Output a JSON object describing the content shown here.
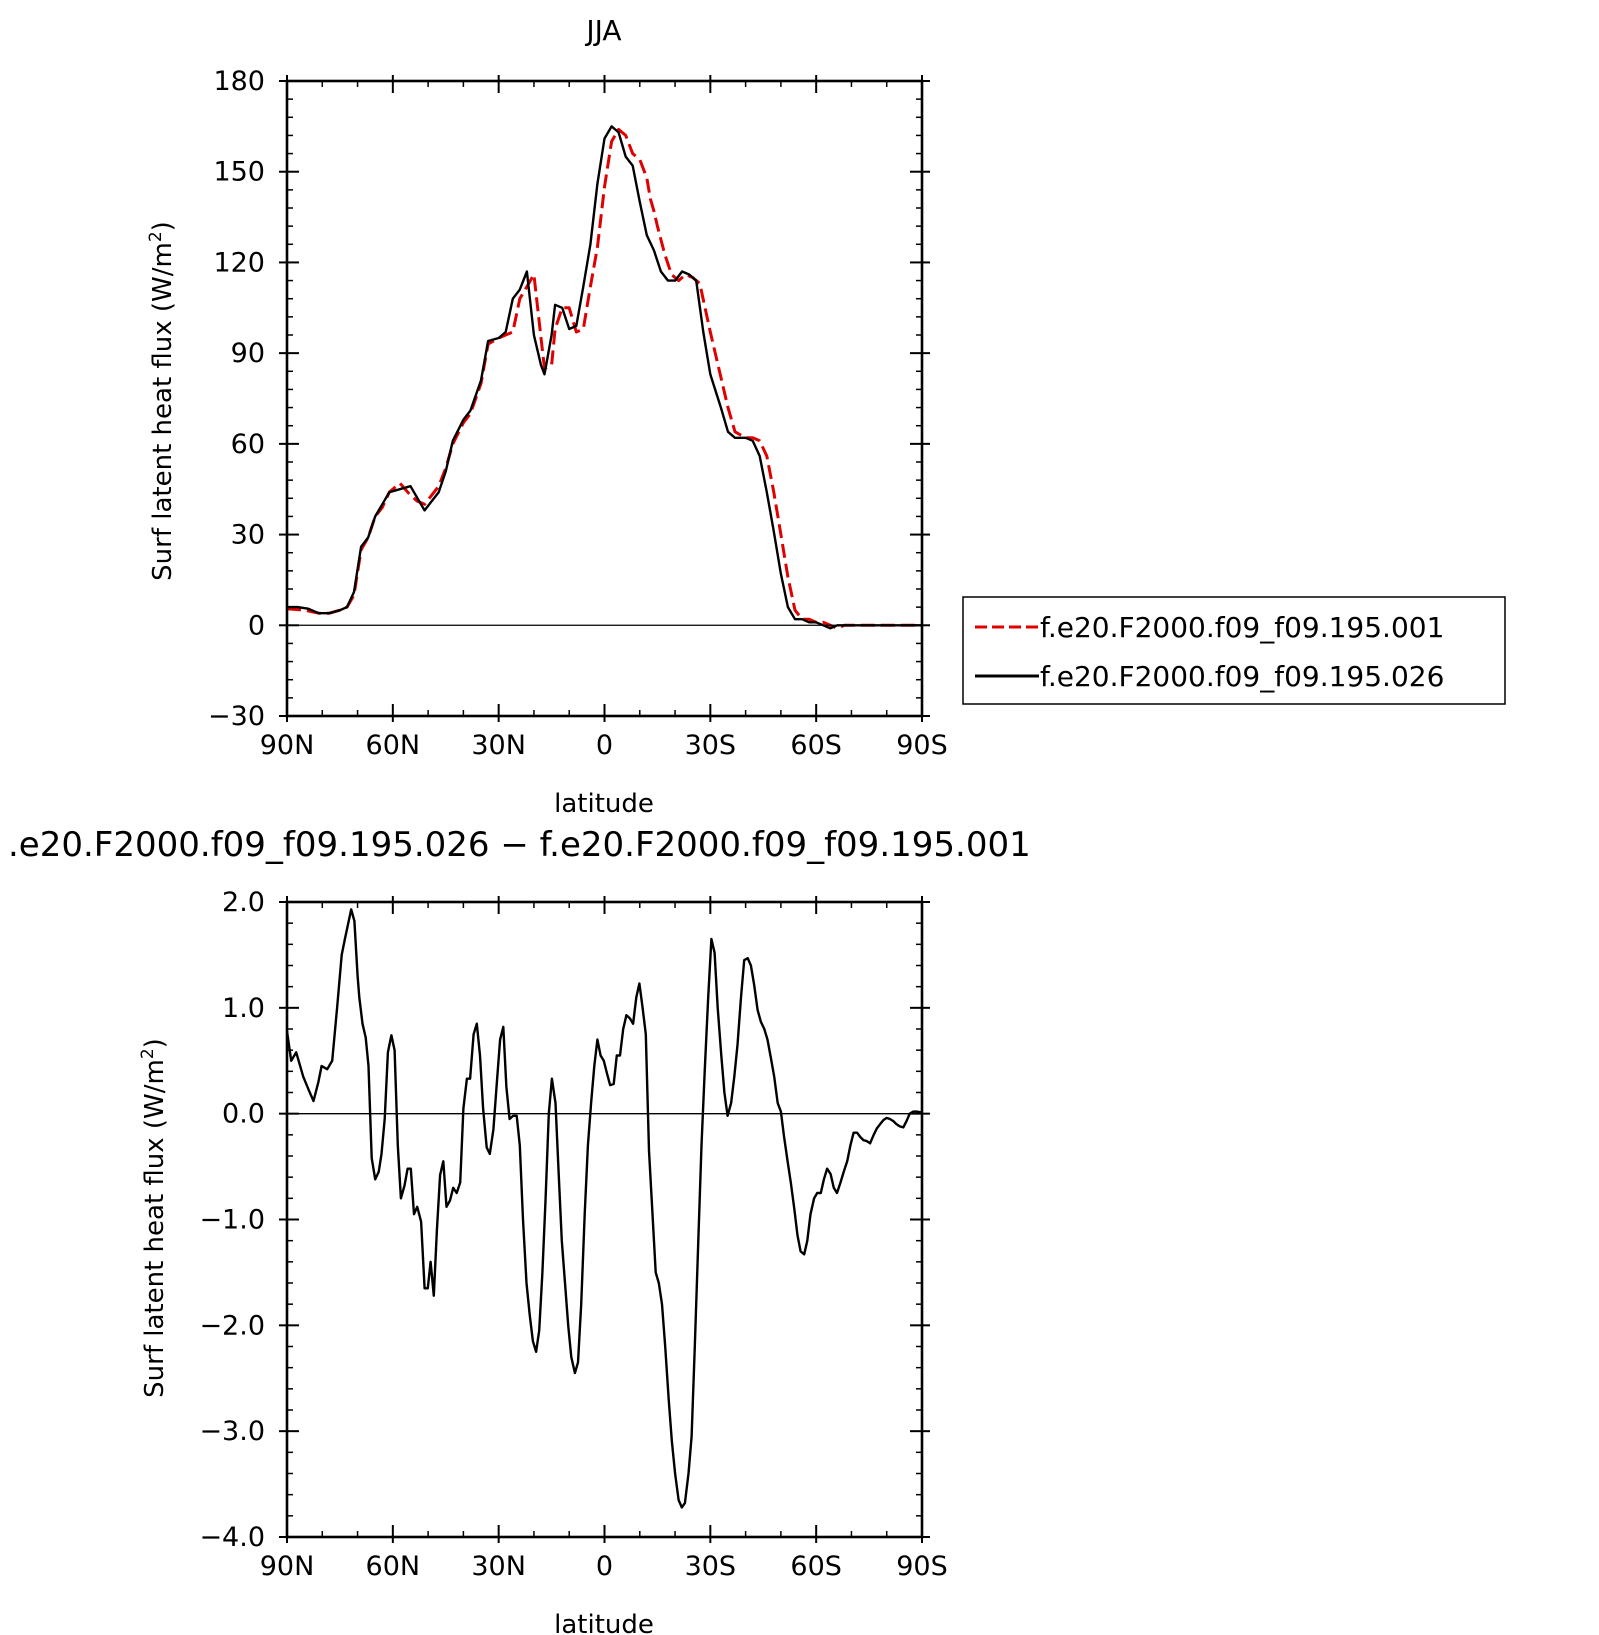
{
  "chart_data": [
    {
      "type": "line",
      "title": "JJA",
      "xlabel": "latitude",
      "ylabel_main": "Surf latent heat flux (W/m",
      "ylabel_sup": "2",
      "ylabel_close": ")",
      "xlim": [
        90,
        -90
      ],
      "ylim": [
        -30,
        180
      ],
      "x_ticks": [
        90,
        60,
        30,
        0,
        -30,
        -60,
        -90
      ],
      "x_tick_labels": [
        "90N",
        "60N",
        "30N",
        "0",
        "30S",
        "60S",
        "90S"
      ],
      "y_ticks": [
        -30,
        0,
        30,
        60,
        90,
        120,
        150,
        180
      ],
      "y_tick_labels": [
        "−30",
        "0",
        "30",
        "60",
        "90",
        "120",
        "150",
        "180"
      ],
      "legend": "outside-right",
      "series": [
        {
          "name": "f.e20.F2000.f09_f09.195.001",
          "color": "#e00000",
          "dash": "dashed",
          "x": [
            90,
            85,
            81,
            78,
            75,
            73,
            71,
            69,
            67,
            65,
            63,
            61,
            58,
            55,
            53,
            51,
            49,
            47,
            45,
            43,
            40,
            38,
            35,
            33,
            30,
            28,
            26,
            24,
            22,
            20,
            18,
            17,
            15,
            14,
            12,
            10,
            8,
            6,
            4,
            2,
            0,
            -2,
            -4,
            -6,
            -8,
            -10,
            -12,
            -13,
            -14,
            -15,
            -17,
            -19,
            -21,
            -23,
            -25,
            -27,
            -30,
            -33,
            -35,
            -37,
            -40,
            -42,
            -44,
            -46,
            -48,
            -50,
            -52,
            -54,
            -56,
            -58,
            -60,
            -62,
            -64,
            -66,
            -68,
            -70,
            -72,
            -75,
            -78,
            -80,
            -82,
            -85,
            -88,
            -90
          ],
          "y": [
            5.5,
            5,
            4,
            4,
            5,
            6,
            10,
            25,
            29,
            36,
            39,
            44,
            47,
            43,
            41,
            40,
            43,
            46,
            52,
            60,
            67,
            70,
            80,
            93,
            95,
            96,
            97,
            108,
            112,
            116,
            95,
            85,
            86,
            98,
            105,
            105,
            97,
            98,
            112,
            125,
            145,
            160,
            164,
            162,
            156,
            154,
            148,
            141,
            137,
            132,
            123,
            116,
            114,
            116,
            115,
            113,
            97,
            82,
            72,
            64,
            62,
            62,
            61,
            56,
            44,
            30,
            16,
            5,
            2,
            2,
            1,
            1,
            0,
            -1,
            0,
            0,
            0,
            0,
            0,
            0,
            0,
            0,
            0,
            0
          ]
        },
        {
          "name": "f.e20.F2000.f09_f09.195.026",
          "color": "#000000",
          "dash": "solid",
          "x": [
            90,
            87,
            84,
            81,
            78,
            75,
            73,
            71,
            69,
            67,
            65,
            63,
            61,
            58,
            55,
            53,
            51,
            49,
            47,
            45,
            43,
            40,
            38,
            35,
            33,
            30,
            28,
            26,
            24,
            22,
            20,
            18,
            17,
            15,
            14,
            12,
            10,
            8,
            6,
            4,
            2,
            0,
            -2,
            -4,
            -6,
            -8,
            -10,
            -12,
            -14,
            -16,
            -18,
            -20,
            -22,
            -24,
            -26,
            -28,
            -30,
            -33,
            -35,
            -37,
            -40,
            -42,
            -44,
            -46,
            -48,
            -50,
            -52,
            -54,
            -56,
            -58,
            -60,
            -62,
            -64,
            -66,
            -68,
            -70,
            -72,
            -75,
            -78,
            -80,
            -82,
            -85,
            -88,
            -90
          ],
          "y": [
            6,
            6,
            5.5,
            4,
            4,
            5,
            6,
            11,
            26,
            29,
            36,
            40,
            44,
            45,
            46,
            42,
            38,
            41,
            44,
            51,
            61,
            68,
            71,
            81,
            94,
            95,
            97,
            108,
            111,
            117,
            96,
            86,
            83,
            96,
            106,
            105,
            98,
            99,
            112,
            126,
            146,
            161,
            165,
            163,
            155,
            152,
            140,
            129,
            124,
            117,
            114,
            114,
            117,
            116,
            114,
            97,
            83,
            72,
            64,
            62,
            62,
            61,
            56,
            44,
            31,
            17,
            6,
            2,
            2,
            1,
            1,
            0,
            -1,
            0,
            0,
            0,
            0,
            0,
            0,
            0,
            0,
            0,
            0,
            0
          ]
        }
      ]
    },
    {
      "type": "line",
      "title": ".e20.F2000.f09_f09.195.026 − f.e20.F2000.f09_f09.195.001",
      "xlabel": "latitude",
      "ylabel_main": "Surf latent heat flux (W/m",
      "ylabel_sup": "2",
      "ylabel_close": ")",
      "xlim": [
        90,
        -90
      ],
      "ylim": [
        -4.0,
        2.0
      ],
      "x_ticks": [
        90,
        60,
        30,
        0,
        -30,
        -60,
        -90
      ],
      "x_tick_labels": [
        "90N",
        "60N",
        "30N",
        "0",
        "30S",
        "60S",
        "90S"
      ],
      "y_ticks": [
        -4,
        -3,
        -2,
        -1,
        0,
        1,
        2
      ],
      "y_tick_labels": [
        "−4.0",
        "−3.0",
        "−2.0",
        "−1.0",
        "0.0",
        "1.0",
        "2.0"
      ],
      "series": [
        {
          "name": "",
          "color": "#000000",
          "dash": "solid",
          "x": [
            90,
            88.8,
            87.4,
            85.4,
            83.8,
            82.5,
            81.1,
            80.2,
            78.6,
            77.2,
            75.8,
            74.5,
            73.6,
            71.8,
            70.9,
            70.0,
            69.5,
            68.6,
            67.7,
            66.9,
            66.0,
            65.0,
            64.0,
            63.2,
            62.3,
            61.4,
            60.4,
            59.5,
            58.6,
            57.7,
            56.7,
            55.8,
            54.9,
            54.0,
            53.1,
            52.0,
            51.0,
            50.1,
            49.3,
            48.4,
            47.5,
            46.6,
            45.7,
            44.8,
            43.8,
            42.9,
            41.9,
            40.9,
            40.0,
            39.0,
            38.1,
            37.1,
            36.2,
            35.3,
            34.4,
            33.4,
            32.5,
            31.5,
            30.5,
            29.6,
            28.7,
            27.8,
            26.9,
            25.9,
            24.9,
            24.0,
            23.1,
            22.1,
            21.2,
            20.3,
            19.4,
            18.5,
            17.6,
            16.7,
            15.8,
            14.9,
            13.9,
            13.0,
            12.1,
            11.2,
            10.3,
            9.4,
            8.4,
            7.5,
            6.6,
            5.6,
            4.7,
            3.8,
            2.9,
            2.0,
            1.1,
            0.2,
            -0.7,
            -1.6,
            -2.6,
            -3.5,
            -4.4,
            -5.3,
            -6.2,
            -7.2,
            -8.1,
            -9.0,
            -9.9,
            -10.8,
            -11.7,
            -12.6,
            -13.6,
            -14.5,
            -15.4,
            -16.3,
            -17.2,
            -18.2,
            -19.1,
            -20.0,
            -21.0,
            -21.9,
            -22.8,
            -23.8,
            -24.7,
            -25.6,
            -26.6,
            -27.5,
            -28.4,
            -29.4,
            -30.3,
            -31.2,
            -32.1,
            -33.1,
            -34.0,
            -34.9,
            -35.9,
            -36.8,
            -37.7,
            -38.7,
            -39.6,
            -40.6,
            -41.5,
            -42.4,
            -43.4,
            -44.3,
            -45.3,
            -46.2,
            -47.2,
            -48.1,
            -49.1,
            -50.0,
            -50.9,
            -51.9,
            -52.8,
            -53.8,
            -54.7,
            -55.6,
            -56.6,
            -57.5,
            -58.4,
            -59.4,
            -60.3,
            -61.3,
            -62.2,
            -63.1,
            -64.1,
            -65.0,
            -65.9,
            -66.9,
            -67.8,
            -68.8,
            -69.7,
            -70.6,
            -71.6,
            -72.5,
            -73.4,
            -74.4,
            -75.3,
            -76.3,
            -77.2,
            -78.1,
            -79.1,
            -80.0,
            -80.9,
            -81.9,
            -82.8,
            -83.7,
            -84.7,
            -85.6,
            -86.5,
            -87.5,
            -88.4,
            -90
          ],
          "y": [
            0.78,
            0.5,
            0.58,
            0.35,
            0.22,
            0.12,
            0.3,
            0.45,
            0.42,
            0.5,
            1.0,
            1.5,
            1.65,
            1.93,
            1.82,
            1.3,
            1.1,
            0.85,
            0.72,
            0.45,
            -0.42,
            -0.62,
            -0.55,
            -0.38,
            -0.05,
            0.58,
            0.74,
            0.6,
            -0.3,
            -0.8,
            -0.68,
            -0.52,
            -0.52,
            -0.95,
            -0.88,
            -1.02,
            -1.65,
            -1.65,
            -1.4,
            -1.72,
            -1.1,
            -0.58,
            -0.45,
            -0.88,
            -0.82,
            -0.7,
            -0.75,
            -0.65,
            0.05,
            0.33,
            0.33,
            0.75,
            0.85,
            0.55,
            0.05,
            -0.32,
            -0.38,
            -0.15,
            0.3,
            0.7,
            0.82,
            0.25,
            -0.05,
            -0.02,
            -0.02,
            -0.3,
            -1.0,
            -1.6,
            -1.9,
            -2.15,
            -2.25,
            -2.05,
            -1.5,
            -0.8,
            0.0,
            0.33,
            0.1,
            -0.55,
            -1.2,
            -1.6,
            -2.0,
            -2.3,
            -2.45,
            -2.35,
            -1.8,
            -0.95,
            -0.3,
            0.1,
            0.45,
            0.7,
            0.55,
            0.5,
            0.38,
            0.27,
            0.28,
            0.55,
            0.55,
            0.8,
            0.93,
            0.9,
            0.85,
            1.1,
            1.23,
            1.0,
            0.75,
            -0.35,
            -0.95,
            -1.5,
            -1.6,
            -1.8,
            -2.2,
            -2.7,
            -3.1,
            -3.4,
            -3.65,
            -3.72,
            -3.68,
            -3.4,
            -3.05,
            -2.2,
            -1.2,
            -0.3,
            0.4,
            1.1,
            1.65,
            1.52,
            1.0,
            0.55,
            0.2,
            -0.02,
            0.1,
            0.35,
            0.65,
            1.1,
            1.45,
            1.47,
            1.4,
            1.22,
            0.98,
            0.87,
            0.8,
            0.7,
            0.52,
            0.35,
            0.1,
            0.02,
            -0.22,
            -0.45,
            -0.65,
            -0.9,
            -1.15,
            -1.3,
            -1.33,
            -1.2,
            -0.95,
            -0.8,
            -0.75,
            -0.75,
            -0.62,
            -0.52,
            -0.57,
            -0.7,
            -0.75,
            -0.65,
            -0.55,
            -0.45,
            -0.3,
            -0.18,
            -0.18,
            -0.22,
            -0.25,
            -0.26,
            -0.28,
            -0.2,
            -0.14,
            -0.1,
            -0.06,
            -0.04,
            -0.05,
            -0.07,
            -0.1,
            -0.12,
            -0.13,
            -0.07,
            0.0,
            0.02,
            0.02,
            0.01
          ]
        }
      ]
    }
  ]
}
